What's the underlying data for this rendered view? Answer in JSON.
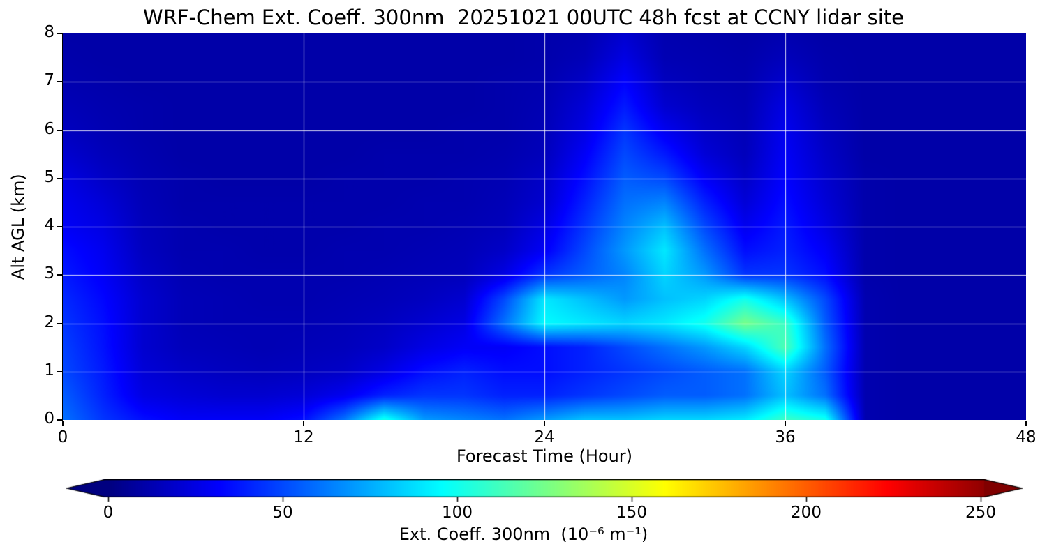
{
  "chart_data": {
    "type": "heatmap",
    "title": "WRF-Chem Ext. Coeff. 300nm  20251021 00UTC 48h fcst at CCNY lidar site",
    "xlabel": "Forecast Time (Hour)",
    "ylabel": "Alt AGL (km)",
    "colorbar_label": "Ext. Coeff. 300nm  (10⁻⁶ m⁻¹)",
    "colormap": "jet",
    "grid": true,
    "xlim": [
      0,
      48
    ],
    "ylim": [
      0,
      8
    ],
    "x_ticks": [
      0,
      12,
      24,
      36,
      48
    ],
    "y_ticks": [
      0,
      1,
      2,
      3,
      4,
      5,
      6,
      7,
      8
    ],
    "x_gridlines": [
      12,
      24,
      36
    ],
    "y_gridlines": [
      1,
      2,
      3,
      4,
      5,
      6,
      7
    ],
    "colorbar_ticks": [
      0,
      50,
      100,
      150,
      200,
      250
    ],
    "vmin": 0,
    "vmax": 255,
    "under_color": "#000080",
    "over_color": "#800000",
    "x_hours": [
      0,
      2,
      4,
      6,
      8,
      10,
      12,
      14,
      16,
      18,
      20,
      22,
      24,
      26,
      28,
      30,
      32,
      34,
      36,
      38,
      40,
      42,
      44,
      46,
      48
    ],
    "y_km": [
      0,
      0.5,
      1,
      1.5,
      2,
      2.5,
      3,
      3.5,
      4,
      4.5,
      5,
      5.5,
      6,
      6.5,
      7,
      7.5,
      8
    ],
    "values_by_altitude_row": [
      [
        60,
        45,
        35,
        30,
        30,
        30,
        35,
        60,
        100,
        70,
        65,
        60,
        70,
        80,
        80,
        85,
        85,
        90,
        110,
        100,
        12,
        10,
        10,
        10,
        10
      ],
      [
        55,
        40,
        25,
        22,
        20,
        20,
        22,
        28,
        40,
        45,
        45,
        40,
        40,
        45,
        50,
        55,
        55,
        60,
        80,
        60,
        12,
        10,
        10,
        10,
        10
      ],
      [
        50,
        38,
        22,
        18,
        16,
        15,
        16,
        18,
        25,
        35,
        40,
        35,
        35,
        40,
        45,
        50,
        55,
        60,
        85,
        55,
        12,
        10,
        10,
        10,
        10
      ],
      [
        48,
        36,
        20,
        15,
        14,
        13,
        14,
        15,
        18,
        25,
        30,
        30,
        35,
        40,
        50,
        60,
        70,
        85,
        115,
        60,
        12,
        10,
        10,
        10,
        10
      ],
      [
        45,
        35,
        20,
        14,
        13,
        13,
        13,
        14,
        16,
        20,
        25,
        60,
        95,
        90,
        85,
        90,
        100,
        125,
        110,
        55,
        12,
        10,
        10,
        10,
        10
      ],
      [
        42,
        33,
        20,
        14,
        13,
        12,
        12,
        13,
        14,
        16,
        20,
        50,
        90,
        80,
        70,
        80,
        85,
        100,
        80,
        50,
        12,
        10,
        10,
        10,
        10
      ],
      [
        38,
        30,
        18,
        13,
        12,
        12,
        12,
        12,
        13,
        14,
        15,
        25,
        45,
        55,
        65,
        85,
        70,
        45,
        45,
        35,
        11,
        10,
        10,
        10,
        10
      ],
      [
        35,
        28,
        16,
        12,
        12,
        11,
        11,
        12,
        12,
        13,
        14,
        18,
        30,
        50,
        70,
        90,
        60,
        35,
        40,
        30,
        11,
        10,
        10,
        10,
        10
      ],
      [
        30,
        25,
        15,
        12,
        11,
        11,
        11,
        11,
        12,
        12,
        13,
        15,
        25,
        45,
        65,
        80,
        50,
        28,
        38,
        25,
        11,
        10,
        10,
        10,
        10
      ],
      [
        28,
        22,
        14,
        11,
        11,
        11,
        11,
        11,
        11,
        12,
        12,
        14,
        20,
        40,
        60,
        65,
        40,
        22,
        35,
        22,
        11,
        10,
        10,
        10,
        10
      ],
      [
        25,
        18,
        13,
        11,
        10,
        10,
        10,
        11,
        11,
        11,
        12,
        13,
        18,
        35,
        55,
        50,
        30,
        18,
        32,
        20,
        11,
        10,
        10,
        10,
        10
      ],
      [
        20,
        15,
        12,
        10,
        10,
        10,
        10,
        10,
        11,
        11,
        11,
        12,
        15,
        30,
        50,
        38,
        22,
        15,
        30,
        18,
        10,
        10,
        10,
        10,
        10
      ],
      [
        16,
        13,
        11,
        10,
        10,
        10,
        10,
        10,
        10,
        10,
        11,
        11,
        14,
        25,
        45,
        28,
        18,
        14,
        28,
        16,
        10,
        10,
        10,
        10,
        10
      ],
      [
        14,
        12,
        11,
        10,
        10,
        10,
        10,
        10,
        10,
        10,
        10,
        11,
        13,
        22,
        38,
        20,
        15,
        13,
        25,
        14,
        10,
        10,
        10,
        10,
        10
      ],
      [
        12,
        11,
        10,
        10,
        10,
        10,
        10,
        10,
        10,
        10,
        10,
        11,
        12,
        18,
        32,
        16,
        13,
        12,
        20,
        12,
        10,
        10,
        10,
        10,
        10
      ],
      [
        11,
        10,
        10,
        10,
        10,
        10,
        10,
        10,
        10,
        10,
        10,
        10,
        11,
        14,
        25,
        13,
        12,
        11,
        15,
        11,
        10,
        10,
        10,
        10,
        10
      ],
      [
        10,
        10,
        10,
        10,
        10,
        10,
        10,
        10,
        10,
        10,
        10,
        10,
        11,
        12,
        20,
        12,
        11,
        10,
        12,
        10,
        10,
        10,
        10,
        10,
        10
      ]
    ]
  }
}
